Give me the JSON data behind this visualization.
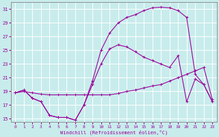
{
  "background_color": "#c8ecec",
  "grid_color": "#ffffff",
  "line_color": "#990099",
  "xlabel": "Windchill (Refroidissement éolien,°C)",
  "xlim": [
    -0.5,
    23.5
  ],
  "ylim": [
    14.5,
    32
  ],
  "yticks": [
    15,
    17,
    19,
    21,
    23,
    25,
    27,
    29,
    31
  ],
  "xticks": [
    0,
    1,
    2,
    3,
    4,
    5,
    6,
    7,
    8,
    9,
    10,
    11,
    12,
    13,
    14,
    15,
    16,
    17,
    18,
    19,
    20,
    21,
    22,
    23
  ],
  "line1_x": [
    0,
    1,
    2,
    3,
    4,
    5,
    6,
    7,
    8,
    9,
    10,
    11,
    12,
    13,
    14,
    15,
    16,
    17,
    18,
    19,
    20,
    21,
    22,
    23
  ],
  "line1_y": [
    18.8,
    19.0,
    18.8,
    18.6,
    18.5,
    18.5,
    18.5,
    18.5,
    18.5,
    18.5,
    18.5,
    18.5,
    18.7,
    19.0,
    19.2,
    19.5,
    19.8,
    20.0,
    20.5,
    21.0,
    21.5,
    22.0,
    22.5,
    17.8
  ],
  "line2_x": [
    0,
    1,
    2,
    3,
    4,
    5,
    6,
    7,
    8,
    9,
    10,
    11,
    12,
    13,
    14,
    15,
    16,
    17,
    18,
    19,
    20,
    21,
    22,
    23
  ],
  "line2_y": [
    18.8,
    19.2,
    18.0,
    17.5,
    15.5,
    15.2,
    15.2,
    14.8,
    17.0,
    20.5,
    25.0,
    27.5,
    29.0,
    29.8,
    30.2,
    30.8,
    31.2,
    31.3,
    31.2,
    30.8,
    29.8,
    21.5,
    20.0,
    17.5
  ],
  "line3_x": [
    0,
    1,
    2,
    3,
    4,
    5,
    6,
    7,
    8,
    9,
    10,
    11,
    12,
    13,
    14,
    15,
    16,
    17,
    18,
    19,
    20,
    21,
    22,
    23
  ],
  "line3_y": [
    18.8,
    19.2,
    18.0,
    17.5,
    15.5,
    15.2,
    15.2,
    14.8,
    17.0,
    20.0,
    23.0,
    25.2,
    25.8,
    25.5,
    24.8,
    24.0,
    23.5,
    23.0,
    22.5,
    24.2,
    17.5,
    20.8,
    20.0,
    17.5
  ]
}
